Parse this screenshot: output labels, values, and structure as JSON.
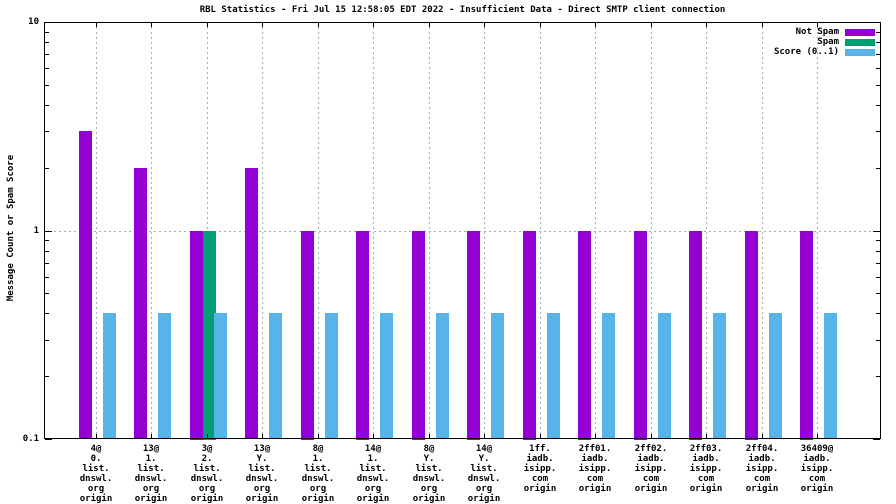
{
  "chart_data": {
    "type": "bar",
    "title": "RBL Statistics - Fri Jul 15 12:58:05 EDT 2022 - Insufficient Data - Direct SMTP client connection",
    "ylabel": "Message Count or Spam Score",
    "y_scale": "log",
    "ylim": [
      0.1,
      10
    ],
    "y_ticks_major": [
      10,
      1,
      0.1
    ],
    "y_tick_labels": [
      "10",
      "1",
      "0.1"
    ],
    "y_ticks_minor": [
      0.2,
      0.3,
      0.4,
      0.5,
      0.6,
      0.7,
      0.8,
      0.9,
      2,
      3,
      4,
      5,
      6,
      7,
      8,
      9
    ],
    "grid": {
      "horizontal_at": [
        1
      ],
      "vertical_per_category": true,
      "style": "dotted-gray"
    },
    "legend_position": "top-right-inside",
    "categories": [
      [
        "4@",
        "0.",
        "list.",
        "dnswl.",
        "org",
        "origin"
      ],
      [
        "13@",
        "1.",
        "list.",
        "dnswl.",
        "org",
        "origin"
      ],
      [
        "3@",
        "2.",
        "list.",
        "dnswl.",
        "org",
        "origin"
      ],
      [
        "13@",
        "Y.",
        "list.",
        "dnswl.",
        "org",
        "origin"
      ],
      [
        "8@",
        "1.",
        "list.",
        "dnswl.",
        "org",
        "origin"
      ],
      [
        "14@",
        "1.",
        "list.",
        "dnswl.",
        "org",
        "origin"
      ],
      [
        "8@",
        "Y.",
        "list.",
        "dnswl.",
        "org",
        "origin"
      ],
      [
        "14@",
        "Y.",
        "list.",
        "dnswl.",
        "org",
        "origin"
      ],
      [
        "1ff.",
        "iadb.",
        "isipp.",
        "com",
        "origin"
      ],
      [
        "2ff01.",
        "iadb.",
        "isipp.",
        "com",
        "origin"
      ],
      [
        "2ff02.",
        "iadb.",
        "isipp.",
        "com",
        "origin"
      ],
      [
        "2ff03.",
        "iadb.",
        "isipp.",
        "com",
        "origin"
      ],
      [
        "2ff04.",
        "iadb.",
        "isipp.",
        "com",
        "origin"
      ],
      [
        "36409@",
        "iadb.",
        "isipp.",
        "com",
        "origin"
      ]
    ],
    "series": [
      {
        "name": "Not Spam",
        "color": "#9400d3",
        "values": [
          3,
          2,
          1,
          2,
          1,
          1,
          1,
          1,
          1,
          1,
          1,
          1,
          1,
          1
        ]
      },
      {
        "name": "Spam",
        "color": "#009e73",
        "values": [
          null,
          null,
          1,
          null,
          null,
          null,
          null,
          null,
          null,
          null,
          null,
          null,
          null,
          null
        ]
      },
      {
        "name": "Score (0..1)",
        "color": "#56b4e9",
        "values": [
          0.4,
          0.4,
          0.4,
          0.4,
          0.4,
          0.4,
          0.4,
          0.4,
          0.4,
          0.4,
          0.4,
          0.4,
          0.4,
          0.4
        ]
      }
    ]
  }
}
